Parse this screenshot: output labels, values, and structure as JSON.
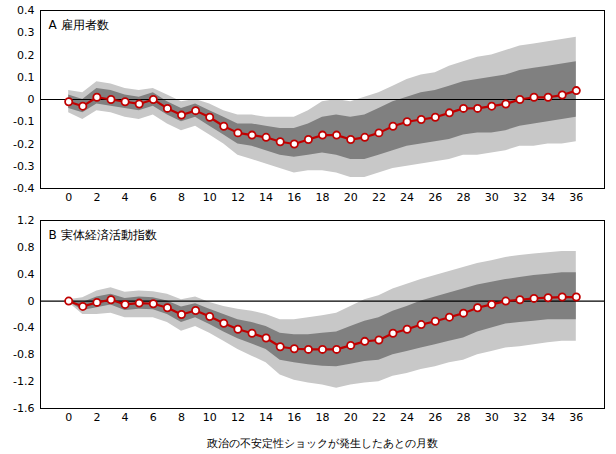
{
  "chart_data": [
    {
      "type": "line",
      "title": "A 雇用者数",
      "x": [
        0,
        1,
        2,
        3,
        4,
        5,
        6,
        7,
        8,
        9,
        10,
        11,
        12,
        13,
        14,
        15,
        16,
        17,
        18,
        19,
        20,
        21,
        22,
        23,
        24,
        25,
        26,
        27,
        28,
        29,
        30,
        31,
        32,
        33,
        34,
        35,
        36
      ],
      "values": [
        -0.01,
        -0.03,
        0.01,
        0.0,
        -0.01,
        -0.02,
        0.0,
        -0.04,
        -0.07,
        -0.05,
        -0.08,
        -0.12,
        -0.15,
        -0.16,
        -0.17,
        -0.19,
        -0.2,
        -0.18,
        -0.16,
        -0.16,
        -0.18,
        -0.17,
        -0.15,
        -0.12,
        -0.1,
        -0.09,
        -0.08,
        -0.06,
        -0.04,
        -0.04,
        -0.03,
        -0.02,
        0.0,
        0.01,
        0.01,
        0.02,
        0.04
      ],
      "color": "#c00000",
      "marker": "circle",
      "line_style": "solid",
      "intervals": [
        {
          "color": "#c8c8c8",
          "lower": [
            -0.06,
            -0.09,
            -0.05,
            -0.06,
            -0.08,
            -0.09,
            -0.07,
            -0.11,
            -0.14,
            -0.12,
            -0.16,
            -0.2,
            -0.25,
            -0.27,
            -0.29,
            -0.31,
            -0.33,
            -0.32,
            -0.32,
            -0.33,
            -0.35,
            -0.35,
            -0.33,
            -0.31,
            -0.3,
            -0.29,
            -0.28,
            -0.27,
            -0.25,
            -0.25,
            -0.24,
            -0.23,
            -0.21,
            -0.21,
            -0.2,
            -0.2,
            -0.19
          ],
          "upper": [
            0.04,
            0.03,
            0.08,
            0.07,
            0.05,
            0.04,
            0.05,
            0.02,
            -0.01,
            0.0,
            -0.02,
            -0.05,
            -0.07,
            -0.07,
            -0.08,
            -0.08,
            -0.08,
            -0.05,
            -0.01,
            0.0,
            -0.01,
            0.01,
            0.03,
            0.06,
            0.09,
            0.11,
            0.12,
            0.15,
            0.17,
            0.19,
            0.2,
            0.22,
            0.24,
            0.25,
            0.26,
            0.27,
            0.28
          ]
        },
        {
          "color": "#808080",
          "lower": [
            -0.04,
            -0.06,
            -0.02,
            -0.03,
            -0.04,
            -0.05,
            -0.03,
            -0.07,
            -0.1,
            -0.08,
            -0.12,
            -0.16,
            -0.2,
            -0.21,
            -0.23,
            -0.25,
            -0.26,
            -0.25,
            -0.24,
            -0.25,
            -0.27,
            -0.27,
            -0.25,
            -0.23,
            -0.21,
            -0.2,
            -0.19,
            -0.18,
            -0.16,
            -0.15,
            -0.15,
            -0.14,
            -0.12,
            -0.11,
            -0.1,
            -0.09,
            -0.08
          ],
          "upper": [
            0.02,
            0.0,
            0.05,
            0.04,
            0.02,
            0.01,
            0.03,
            -0.01,
            -0.04,
            -0.02,
            -0.05,
            -0.08,
            -0.11,
            -0.11,
            -0.12,
            -0.13,
            -0.13,
            -0.11,
            -0.08,
            -0.07,
            -0.08,
            -0.07,
            -0.04,
            -0.01,
            0.01,
            0.03,
            0.04,
            0.06,
            0.08,
            0.09,
            0.1,
            0.11,
            0.13,
            0.14,
            0.15,
            0.16,
            0.17
          ]
        }
      ],
      "xlim": [
        -2,
        38
      ],
      "xticks": [
        0,
        2,
        4,
        6,
        8,
        10,
        12,
        14,
        16,
        18,
        20,
        22,
        24,
        26,
        28,
        30,
        32,
        34,
        36
      ],
      "ylim": [
        -0.4,
        0.4
      ],
      "yticks": [
        -0.4,
        -0.3,
        -0.2,
        -0.1,
        0,
        0.1,
        0.2,
        0.3,
        0.4
      ],
      "grid": false
    },
    {
      "type": "line",
      "title": "B 実体経済活動指数",
      "xlabel": "政治の不安定性ショックが発生したあとの月数",
      "x": [
        0,
        1,
        2,
        3,
        4,
        5,
        6,
        7,
        8,
        9,
        10,
        11,
        12,
        13,
        14,
        15,
        16,
        17,
        18,
        19,
        20,
        21,
        22,
        23,
        24,
        25,
        26,
        27,
        28,
        29,
        30,
        31,
        32,
        33,
        34,
        35,
        36
      ],
      "values": [
        0.0,
        -0.08,
        -0.02,
        0.02,
        -0.05,
        -0.03,
        -0.04,
        -0.1,
        -0.2,
        -0.14,
        -0.23,
        -0.33,
        -0.42,
        -0.48,
        -0.55,
        -0.68,
        -0.71,
        -0.72,
        -0.72,
        -0.72,
        -0.66,
        -0.6,
        -0.58,
        -0.48,
        -0.42,
        -0.35,
        -0.3,
        -0.24,
        -0.18,
        -0.1,
        -0.05,
        0.0,
        0.02,
        0.04,
        0.05,
        0.06,
        0.06
      ],
      "color": "#c00000",
      "marker": "circle",
      "line_style": "solid",
      "intervals": [
        {
          "color": "#c8c8c8",
          "lower": [
            -0.02,
            -0.2,
            -0.2,
            -0.18,
            -0.25,
            -0.25,
            -0.25,
            -0.32,
            -0.45,
            -0.38,
            -0.48,
            -0.6,
            -0.72,
            -0.82,
            -0.92,
            -1.1,
            -1.18,
            -1.22,
            -1.25,
            -1.3,
            -1.25,
            -1.22,
            -1.2,
            -1.12,
            -1.08,
            -1.02,
            -0.98,
            -0.92,
            -0.88,
            -0.8,
            -0.75,
            -0.7,
            -0.68,
            -0.65,
            -0.62,
            -0.6,
            -0.6
          ],
          "upper": [
            0.02,
            0.05,
            0.15,
            0.2,
            0.13,
            0.15,
            0.14,
            0.1,
            0.02,
            0.06,
            -0.02,
            -0.08,
            -0.12,
            -0.15,
            -0.2,
            -0.28,
            -0.28,
            -0.25,
            -0.22,
            -0.18,
            -0.08,
            0.02,
            0.08,
            0.18,
            0.25,
            0.32,
            0.38,
            0.44,
            0.5,
            0.56,
            0.6,
            0.65,
            0.68,
            0.7,
            0.72,
            0.74,
            0.74
          ]
        },
        {
          "color": "#808080",
          "lower": [
            -0.01,
            -0.14,
            -0.1,
            -0.06,
            -0.14,
            -0.12,
            -0.13,
            -0.2,
            -0.32,
            -0.25,
            -0.35,
            -0.46,
            -0.56,
            -0.64,
            -0.72,
            -0.88,
            -0.92,
            -0.95,
            -0.97,
            -0.98,
            -0.94,
            -0.9,
            -0.88,
            -0.8,
            -0.75,
            -0.7,
            -0.65,
            -0.6,
            -0.55,
            -0.46,
            -0.4,
            -0.34,
            -0.32,
            -0.3,
            -0.28,
            -0.28,
            -0.28
          ],
          "upper": [
            0.01,
            -0.02,
            0.06,
            0.1,
            0.04,
            0.06,
            0.05,
            0.0,
            -0.09,
            -0.04,
            -0.12,
            -0.2,
            -0.28,
            -0.32,
            -0.38,
            -0.48,
            -0.5,
            -0.5,
            -0.48,
            -0.46,
            -0.38,
            -0.3,
            -0.25,
            -0.15,
            -0.08,
            0.0,
            0.06,
            0.12,
            0.18,
            0.24,
            0.28,
            0.32,
            0.35,
            0.38,
            0.4,
            0.42,
            0.42
          ]
        }
      ],
      "xlim": [
        -2,
        38
      ],
      "xticks": [
        0,
        2,
        4,
        6,
        8,
        10,
        12,
        14,
        16,
        18,
        20,
        22,
        24,
        26,
        28,
        30,
        32,
        34,
        36
      ],
      "ylim": [
        -1.6,
        1.2
      ],
      "yticks": [
        -1.6,
        -1.2,
        -0.8,
        -0.4,
        0,
        0.4,
        0.8,
        1.2
      ],
      "grid": false
    }
  ]
}
